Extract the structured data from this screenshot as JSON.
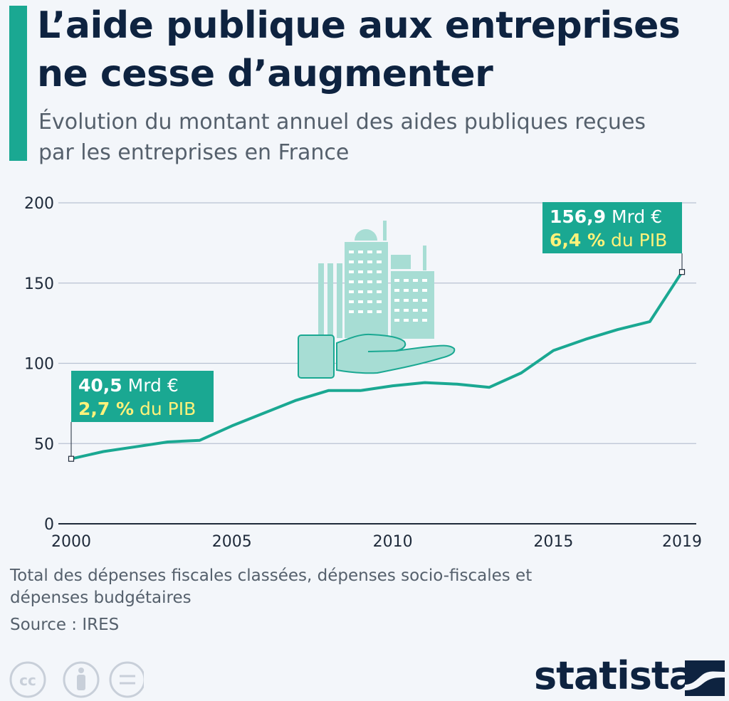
{
  "title": "L’aide publique aux entreprises ne cesse d’augmenter",
  "subtitle": "Évolution du montant annuel des aides publiques reçues par les entreprises en France",
  "footnote": "Total des dépenses fiscales classées, dépenses socio-fiscales et dépenses budgétaires",
  "source": "Source : IRES",
  "brand": "statista",
  "icons": [
    "creative-commons-icon",
    "attribution-icon",
    "no-derivatives-icon",
    "statista-logo-icon",
    "buildings-hand-icon"
  ],
  "colors": {
    "accent": "#1aa892",
    "title": "#0e2340",
    "highlight": "#fff27a",
    "grid": "#b8c2d2"
  },
  "chart_data": {
    "type": "line",
    "title": "",
    "xlabel": "",
    "ylabel": "",
    "ylim": [
      0,
      200
    ],
    "xlim": [
      2000,
      2019
    ],
    "yticks": [
      0,
      50,
      100,
      150,
      200
    ],
    "xticks": [
      2000,
      2005,
      2010,
      2015,
      2019
    ],
    "grid": true,
    "series": [
      {
        "x": [
          2000,
          2001,
          2002,
          2003,
          2004,
          2005,
          2006,
          2007,
          2008,
          2009,
          2010,
          2011,
          2012,
          2013,
          2014,
          2015,
          2016,
          2017,
          2018,
          2019
        ],
        "values": [
          40.5,
          45,
          48,
          51,
          52,
          61,
          69,
          77,
          83,
          83,
          86,
          88,
          87,
          85,
          94,
          108,
          115,
          121,
          126,
          156.9
        ]
      }
    ],
    "annotations": [
      {
        "x": 2000,
        "y": 40.5,
        "value_bold": "40,5",
        "value_rest": " Mrd €",
        "pct_bold": "2,7 %",
        "pct_rest": " du PIB"
      },
      {
        "x": 2019,
        "y": 156.9,
        "value_bold": "156,9",
        "value_rest": " Mrd €",
        "pct_bold": "6,4 %",
        "pct_rest": " du PIB"
      }
    ]
  }
}
